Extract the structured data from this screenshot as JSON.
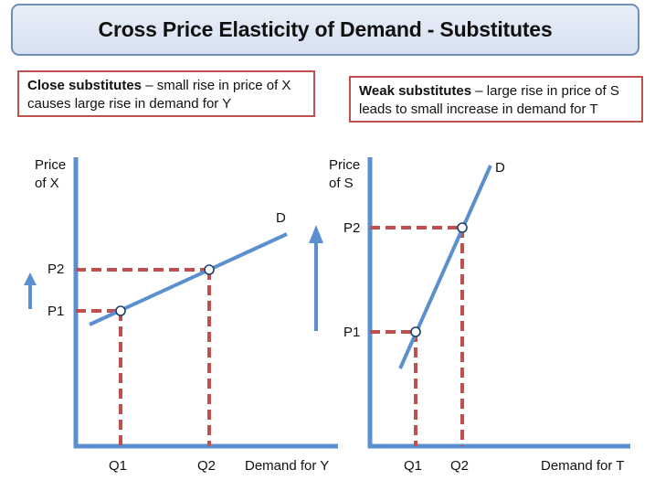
{
  "title": "Cross Price Elasticity of Demand - Substitutes",
  "notes": {
    "left": {
      "bold": "Close substitutes",
      "text": " – small rise in price of X causes large rise in demand for Y"
    },
    "right": {
      "bold": "Weak substitutes",
      "text": " – large rise in price of S leads to small increase in demand for T"
    }
  },
  "charts": {
    "left": {
      "y_label_line1": "Price",
      "y_label_line2": "of X",
      "x_label": "Demand for Y",
      "curve_label": "D",
      "p1": "P1",
      "p2": "P2",
      "q1": "Q1",
      "q2": "Q2"
    },
    "right": {
      "y_label_line1": "Price",
      "y_label_line2": "of S",
      "x_label": "Demand for T",
      "curve_label": "D",
      "p1": "P1",
      "p2": "P2",
      "q1": "Q1",
      "q2": "Q2"
    }
  },
  "colors": {
    "axis": "#5b8fcf",
    "guide": "#c0504d",
    "note_border": "#c0504d",
    "title_border": "#6f8fb8"
  }
}
